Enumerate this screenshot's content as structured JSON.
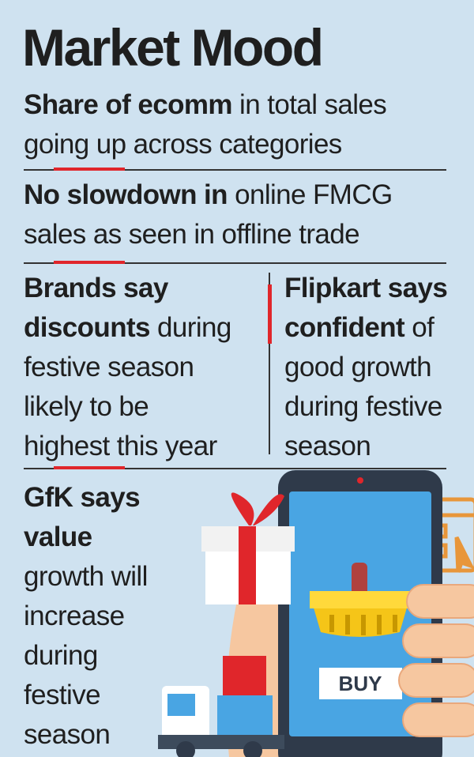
{
  "title": "Market Mood",
  "points": [
    {
      "lines": [
        [
          {
            "text": "Share of ecomm",
            "bold": true
          },
          {
            "text": " in total sales",
            "bold": false
          }
        ],
        [
          {
            "text": "going up across categories",
            "bold": false
          }
        ]
      ]
    },
    {
      "lines": [
        [
          {
            "text": "No slowdown in",
            "bold": true
          },
          {
            "text": " online FMCG",
            "bold": false
          }
        ],
        [
          {
            "text": "sales as seen in offline trade",
            "bold": false
          }
        ]
      ]
    },
    {
      "lines": [
        [
          {
            "text": "Brands say",
            "bold": true
          }
        ],
        [
          {
            "text": "discounts",
            "bold": true
          },
          {
            "text": " during",
            "bold": false
          }
        ],
        [
          {
            "text": "festive season",
            "bold": false
          }
        ],
        [
          {
            "text": "likely to be",
            "bold": false
          }
        ],
        [
          {
            "text": "highest this year",
            "bold": false
          }
        ]
      ]
    },
    {
      "lines": [
        [
          {
            "text": "Flipkart says",
            "bold": true
          }
        ],
        [
          {
            "text": "confident",
            "bold": true
          },
          {
            "text": " of",
            "bold": false
          }
        ],
        [
          {
            "text": "good growth",
            "bold": false
          }
        ],
        [
          {
            "text": "during festive",
            "bold": false
          }
        ],
        [
          {
            "text": "season",
            "bold": false
          }
        ]
      ]
    },
    {
      "lines": [
        [
          {
            "text": "GfK says",
            "bold": true
          }
        ],
        [
          {
            "text": "value",
            "bold": true
          }
        ],
        [
          {
            "text": "growth will",
            "bold": false
          }
        ],
        [
          {
            "text": "increase",
            "bold": false
          }
        ],
        [
          {
            "text": "during",
            "bold": false
          }
        ],
        [
          {
            "text": "festive",
            "bold": false
          }
        ],
        [
          {
            "text": "season",
            "bold": false
          }
        ]
      ]
    }
  ],
  "buy_label": "BUY"
}
